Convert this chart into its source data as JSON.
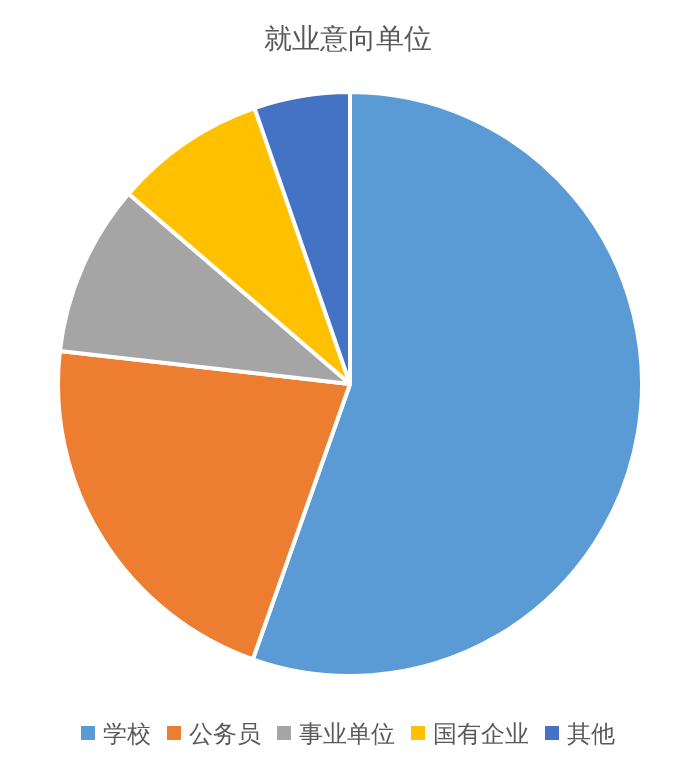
{
  "chart_data": {
    "type": "pie",
    "title": "就业意向单位",
    "categories": [
      "学校",
      "公务员",
      "事业单位",
      "国有企业",
      "其他"
    ],
    "values": [
      55.4,
      21.4,
      9.5,
      8.4,
      5.3
    ],
    "colors": [
      "#5b9bd5",
      "#ed7d31",
      "#a5a5a5",
      "#ffc000",
      "#4472c4"
    ],
    "legend": "bottom"
  }
}
